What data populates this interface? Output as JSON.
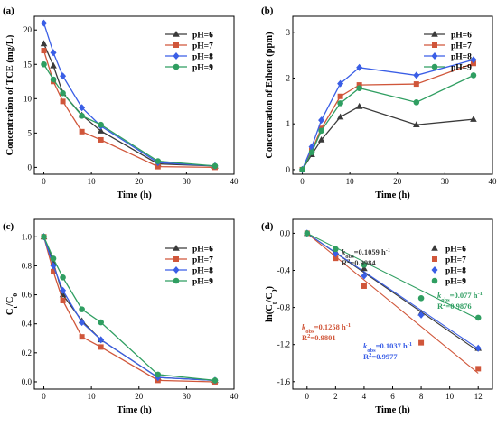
{
  "colors": {
    "ph6": "#3a3a3a",
    "ph7": "#d0563a",
    "ph8": "#3a5ee6",
    "ph9": "#2f9e61"
  },
  "chart_data": [
    {
      "panel": "(a)",
      "type": "line",
      "xlabel": "Time (h)",
      "ylabel": "Concentration of TCE (mg/L)",
      "xlim": [
        -2,
        40
      ],
      "ylim": [
        -1,
        22
      ],
      "xticks": [
        0,
        10,
        20,
        30,
        40
      ],
      "yticks": [
        0,
        5,
        10,
        15,
        20
      ],
      "legend_position": "top-right",
      "x": [
        0,
        2,
        4,
        8,
        12,
        24,
        36
      ],
      "series": [
        {
          "name": "pH=6",
          "color": "#3a3a3a",
          "marker": "triangle",
          "values": [
            18.0,
            14.8,
            10.8,
            7.6,
            5.3,
            0.5,
            0.2
          ]
        },
        {
          "name": "pH=7",
          "color": "#d0563a",
          "marker": "square",
          "values": [
            17.0,
            12.5,
            9.6,
            5.2,
            4.0,
            0.1,
            0.0
          ]
        },
        {
          "name": "pH=8",
          "color": "#3a5ee6",
          "marker": "diamond",
          "values": [
            21.0,
            16.7,
            13.3,
            8.7,
            6.0,
            0.7,
            0.2
          ]
        },
        {
          "name": "pH=9",
          "color": "#2f9e61",
          "marker": "circle",
          "values": [
            15.0,
            12.8,
            10.8,
            7.5,
            6.2,
            0.9,
            0.2
          ]
        }
      ]
    },
    {
      "panel": "(b)",
      "type": "line",
      "xlabel": "Time (h)",
      "ylabel": "Concentration of Ethene (ppm)",
      "xlim": [
        -2,
        40
      ],
      "ylim": [
        -0.1,
        3.35
      ],
      "xticks": [
        0,
        10,
        20,
        30,
        40
      ],
      "yticks": [
        0,
        1,
        2,
        3
      ],
      "legend_position": "top-right",
      "x": [
        0,
        2,
        4,
        8,
        12,
        24,
        36
      ],
      "series": [
        {
          "name": "pH=6",
          "color": "#3a3a3a",
          "marker": "triangle",
          "values": [
            0.0,
            0.33,
            0.65,
            1.15,
            1.38,
            0.98,
            1.1
          ]
        },
        {
          "name": "pH=7",
          "color": "#d0563a",
          "marker": "square",
          "values": [
            0.0,
            0.42,
            0.9,
            1.6,
            1.85,
            1.87,
            2.32
          ]
        },
        {
          "name": "pH=8",
          "color": "#3a5ee6",
          "marker": "diamond",
          "values": [
            0.0,
            0.5,
            1.08,
            1.88,
            2.23,
            2.06,
            2.4
          ]
        },
        {
          "name": "pH=9",
          "color": "#2f9e61",
          "marker": "circle",
          "values": [
            0.0,
            0.38,
            0.85,
            1.45,
            1.78,
            1.47,
            2.06
          ]
        }
      ]
    },
    {
      "panel": "(c)",
      "type": "line",
      "xlabel": "Time (h)",
      "ylabel": "Ct/C0",
      "xlim": [
        -2,
        40
      ],
      "ylim": [
        -0.05,
        1.12
      ],
      "xticks": [
        0,
        10,
        20,
        30,
        40
      ],
      "yticks": [
        0.0,
        0.2,
        0.4,
        0.6,
        0.8,
        1.0
      ],
      "legend_position": "top-right",
      "x": [
        0,
        2,
        4,
        8,
        12,
        24,
        36
      ],
      "series": [
        {
          "name": "pH=6",
          "color": "#3a3a3a",
          "marker": "triangle",
          "values": [
            1.0,
            0.82,
            0.6,
            0.42,
            0.29,
            0.03,
            0.01
          ]
        },
        {
          "name": "pH=7",
          "color": "#d0563a",
          "marker": "square",
          "values": [
            1.0,
            0.76,
            0.56,
            0.31,
            0.24,
            0.01,
            0.0
          ]
        },
        {
          "name": "pH=8",
          "color": "#3a5ee6",
          "marker": "diamond",
          "values": [
            1.0,
            0.8,
            0.63,
            0.41,
            0.29,
            0.03,
            0.01
          ]
        },
        {
          "name": "pH=9",
          "color": "#2f9e61",
          "marker": "circle",
          "values": [
            1.0,
            0.85,
            0.72,
            0.5,
            0.41,
            0.05,
            0.01
          ]
        }
      ]
    },
    {
      "panel": "(d)",
      "type": "scatter",
      "xlabel": "Time (h)",
      "ylabel": "ln(Ct/C0)",
      "xlim": [
        -1,
        13
      ],
      "ylim": [
        -1.68,
        0.15
      ],
      "xticks": [
        0,
        2,
        4,
        6,
        8,
        10,
        12
      ],
      "yticks": [
        0.0,
        -0.4,
        -0.8,
        -1.2,
        -1.6
      ],
      "legend_position": "right",
      "x": [
        0,
        2,
        4,
        8,
        12
      ],
      "series": [
        {
          "name": "pH=6",
          "color": "#3a3a3a",
          "marker": "triangle",
          "values": [
            0.0,
            -0.2,
            -0.38,
            -0.86,
            -1.24
          ],
          "fit_slope": -0.1059
        },
        {
          "name": "pH=7",
          "color": "#d0563a",
          "marker": "square",
          "values": [
            0.0,
            -0.27,
            -0.57,
            -1.18,
            -1.46
          ],
          "fit_slope": -0.1258
        },
        {
          "name": "pH=8",
          "color": "#3a5ee6",
          "marker": "diamond",
          "values": [
            0.0,
            -0.22,
            -0.46,
            -0.88,
            -1.24
          ],
          "fit_slope": -0.1037
        },
        {
          "name": "pH=9",
          "color": "#2f9e61",
          "marker": "circle",
          "values": [
            0.0,
            -0.17,
            -0.34,
            -0.7,
            -0.91
          ],
          "fit_slope": -0.077
        }
      ],
      "annotations": [
        {
          "k": "k",
          "sub": "obs",
          "rest": "=0.1059 h",
          "sup": "-1",
          "r2": "R",
          "r2sup": "2",
          "r2val": "=0.9984",
          "color": "#3a3a3a"
        },
        {
          "k": "k",
          "sub": "obs",
          "rest": "=0.1258 h",
          "sup": "-1",
          "r2": "R",
          "r2sup": "2",
          "r2val": "=0.9801",
          "color": "#d0563a"
        },
        {
          "k": "k",
          "sub": "obs",
          "rest": "=0.1037 h",
          "sup": "-1",
          "r2": "R",
          "r2sup": "2",
          "r2val": "=0.9977",
          "color": "#3a5ee6"
        },
        {
          "k": "k",
          "sub": "obs",
          "rest": "=0.077 h",
          "sup": "-1",
          "r2": "R",
          "r2sup": "2",
          "r2val": "=0.9876",
          "color": "#2f9e61"
        }
      ]
    }
  ]
}
